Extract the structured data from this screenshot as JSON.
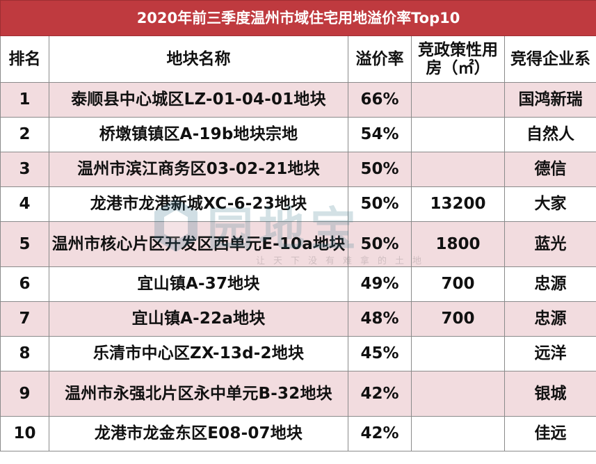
{
  "table": {
    "title": "2020年前三季度温州市域住宅用地溢价率Top10",
    "headers": {
      "rank": "排名",
      "parcel": "地块名称",
      "premium": "溢价率",
      "policy_housing": "竞政策性用房（㎡）",
      "winner": "竞得企业系"
    },
    "rows": [
      {
        "rank": "1",
        "parcel": "泰顺县中心城区LZ-01-04-01地块",
        "premium": "66%",
        "policy_housing": "",
        "winner": "国鸿新瑞"
      },
      {
        "rank": "2",
        "parcel": "桥墩镇镇区A-19b地块宗地",
        "premium": "54%",
        "policy_housing": "",
        "winner": "自然人"
      },
      {
        "rank": "3",
        "parcel": "温州市滨江商务区03-02-21地块",
        "premium": "50%",
        "policy_housing": "",
        "winner": "德信"
      },
      {
        "rank": "4",
        "parcel": "龙港市龙港新城XC-6-23地块",
        "premium": "50%",
        "policy_housing": "13200",
        "winner": "大家"
      },
      {
        "rank": "5",
        "parcel": "温州市核心片区开发区西单元E-10a地块",
        "premium": "50%",
        "policy_housing": "1800",
        "winner": "蓝光"
      },
      {
        "rank": "6",
        "parcel": "宜山镇A-37地块",
        "premium": "49%",
        "policy_housing": "700",
        "winner": "忠源"
      },
      {
        "rank": "7",
        "parcel": "宜山镇A-22a地块",
        "premium": "48%",
        "policy_housing": "700",
        "winner": "忠源"
      },
      {
        "rank": "8",
        "parcel": "乐清市中心区ZX-13d-2地块",
        "premium": "45%",
        "policy_housing": "",
        "winner": "远洋"
      },
      {
        "rank": "9",
        "parcel": "温州市永强北片区永中单元B-32地块",
        "premium": "42%",
        "policy_housing": "",
        "winner": "银城"
      },
      {
        "rank": "10",
        "parcel": "龙港市龙金东区E08-07地块",
        "premium": "42%",
        "policy_housing": "",
        "winner": "佳远"
      }
    ]
  },
  "watermark": {
    "brand": "园地宝",
    "slogan": "让天下没有难拿的土地",
    "logo_icon": "hexagon-logo-icon"
  },
  "colors": {
    "title_bg": "#bf3a3f",
    "stripe": "#f2dcdf",
    "border": "#8a8a8a"
  }
}
